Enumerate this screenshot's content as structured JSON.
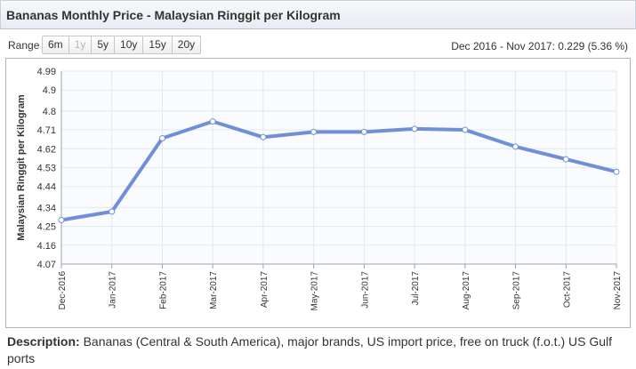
{
  "header": {
    "title": "Bananas Monthly Price - Malaysian Ringgit per Kilogram"
  },
  "range": {
    "label": "Range",
    "buttons": [
      {
        "label": "6m",
        "enabled": true
      },
      {
        "label": "1y",
        "enabled": false
      },
      {
        "label": "5y",
        "enabled": true
      },
      {
        "label": "10y",
        "enabled": true
      },
      {
        "label": "15y",
        "enabled": true
      },
      {
        "label": "20y",
        "enabled": true
      }
    ],
    "summary": "Dec 2016 - Nov 2017: 0.229 (5.36 %)"
  },
  "chart_data": {
    "type": "line",
    "title": "",
    "xlabel": "",
    "ylabel": "Malaysian Ringgit per Kilogram",
    "categories": [
      "Dec-2016",
      "Jan-2017",
      "Feb-2017",
      "Mar-2017",
      "Apr-2017",
      "May-2017",
      "Jun-2017",
      "Jul-2017",
      "Aug-2017",
      "Sep-2017",
      "Oct-2017",
      "Nov-2017"
    ],
    "series": [
      {
        "values": [
          4.28,
          4.32,
          4.67,
          4.75,
          4.675,
          4.7,
          4.7,
          4.715,
          4.71,
          4.63,
          4.57,
          4.51
        ]
      }
    ],
    "yticks": [
      "4.07",
      "4.16",
      "4.25",
      "4.34",
      "4.44",
      "4.53",
      "4.62",
      "4.71",
      "4.8",
      "4.9",
      "4.99"
    ],
    "ylim": [
      4.07,
      4.99
    ],
    "grid": true,
    "legend": "none",
    "line_color": "#6f8fd6",
    "marker_fill": "#ffffff"
  },
  "description": {
    "label": "Description:",
    "text": " Bananas (Central & South America), major brands, US import price, free on truck (f.o.t.) US Gulf ports"
  }
}
